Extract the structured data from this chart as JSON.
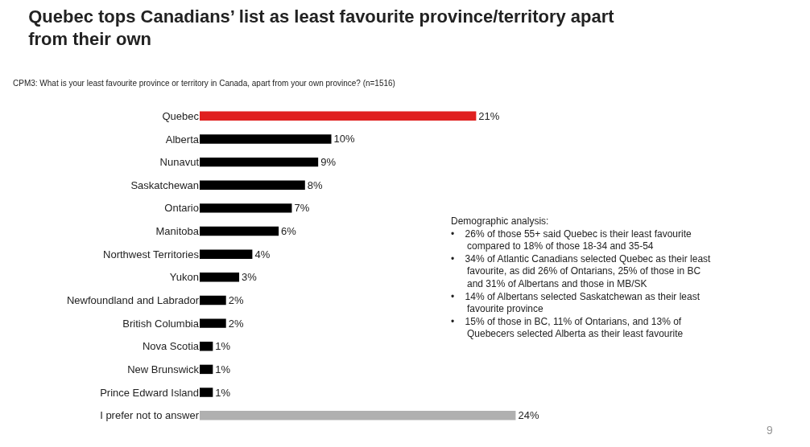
{
  "chart_data": {
    "type": "bar",
    "orientation": "horizontal",
    "title": "Quebec tops Canadians’ list as least favourite province/territory apart\nfrom their own",
    "subtitle": "CPM3: What is your least favourite province or territory in Canada, apart from your own province? (n=1516)",
    "categories": [
      "Quebec",
      "Alberta",
      "Nunavut",
      "Saskatchewan",
      "Ontario",
      "Manitoba",
      "Northwest Territories",
      "Yukon",
      "Newfoundland and Labrador",
      "British Columbia",
      "Nova Scotia",
      "New Brunswick",
      "Prince Edward Island",
      "I prefer not to answer"
    ],
    "values": [
      21,
      10,
      9,
      8,
      7,
      6,
      4,
      3,
      2,
      2,
      1,
      1,
      1,
      24
    ],
    "value_labels": [
      "21%",
      "10%",
      "9%",
      "8%",
      "7%",
      "6%",
      "4%",
      "3%",
      "2%",
      "2%",
      "1%",
      "1%",
      "1%",
      "24%"
    ],
    "colors": [
      "#e0201f",
      "#000000",
      "#000000",
      "#000000",
      "#000000",
      "#000000",
      "#000000",
      "#000000",
      "#000000",
      "#000000",
      "#000000",
      "#000000",
      "#000000",
      "#b0b0b0"
    ],
    "annotations": [
      "Demographic analysis:\n•    26% of those 55+ said Quebec is their least favourite\n      compared to 18% of those 18-34 and 35-54\n•    34% of Atlantic Canadians selected Quebec as their least\n      favourite, as did 26% of Ontarians, 25% of those in BC\n      and 31% of Albertans and those in MB/SK\n•    14% of Albertans selected Saskatchewan as their least\n      favourite province\n•    15% of those in BC, 11% of Ontarians, and 13% of\n      Quebecers selected Alberta as their least favourite",
      "9"
    ],
    "legend": false
  }
}
